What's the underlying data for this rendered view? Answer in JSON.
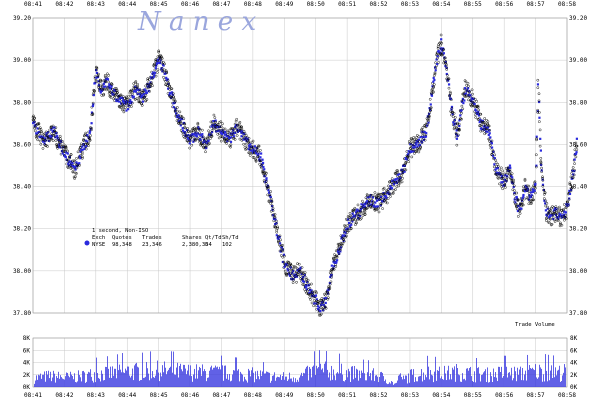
{
  "watermark": "N a n e x",
  "price_axis": {
    "ticks": [
      "39.20",
      "39.00",
      "38.80",
      "38.60",
      "38.40",
      "38.20",
      "38.00",
      "37.80"
    ],
    "values": [
      39.2,
      39.0,
      38.8,
      38.6,
      38.4,
      38.2,
      38.0,
      37.8
    ]
  },
  "volume_axis": {
    "title": "Trade Volume",
    "ticks": [
      "8K",
      "6K",
      "4K",
      "2K",
      "0K"
    ],
    "values": [
      8000,
      6000,
      4000,
      2000,
      0
    ]
  },
  "time_ticks": [
    "08:41",
    "08:42",
    "08:43",
    "08:44",
    "08:45",
    "08:46",
    "08:47",
    "08:48",
    "08:49",
    "08:50",
    "08:51",
    "08:52",
    "08:53",
    "08:54",
    "08:55",
    "08:56",
    "08:57",
    "08:58"
  ],
  "legend": {
    "line1": "1 second, Non-ISO",
    "headers": [
      "Exch",
      "Quotes",
      "Trades",
      "Shares",
      "Qt/Td",
      "Sh/Td"
    ],
    "row": [
      "NYSE",
      "98,348",
      "23,346",
      "2,380,304",
      "5",
      "102"
    ]
  },
  "colors": {
    "trade_marker": "#2a2add",
    "quote_marker": "#000000",
    "volume_bar": "#3a3ae0",
    "grid": "#c8c8c8"
  },
  "chart_data": {
    "type": "scatter",
    "title": "",
    "xlabel": "",
    "ylabel": "",
    "xlim": [
      "08:41",
      "08:58"
    ],
    "ylim": [
      37.8,
      39.2
    ],
    "volume_ylim": [
      0,
      8000
    ],
    "grid": true,
    "series": [
      {
        "name": "NYSE",
        "kind": "price",
        "x": [
          "08:41:00",
          "08:41:20",
          "08:41:40",
          "08:42:00",
          "08:42:20",
          "08:42:35",
          "08:42:50",
          "08:43:00",
          "08:43:10",
          "08:43:20",
          "08:43:40",
          "08:44:00",
          "08:44:15",
          "08:44:30",
          "08:44:45",
          "08:45:00",
          "08:45:10",
          "08:45:20",
          "08:45:40",
          "08:46:00",
          "08:46:15",
          "08:46:30",
          "08:46:45",
          "08:47:00",
          "08:47:15",
          "08:47:30",
          "08:47:45",
          "08:48:00",
          "08:48:15",
          "08:48:30",
          "08:48:45",
          "08:49:00",
          "08:49:15",
          "08:49:30",
          "08:49:45",
          "08:50:00",
          "08:50:10",
          "08:50:20",
          "08:50:30",
          "08:50:45",
          "08:51:00",
          "08:51:15",
          "08:51:30",
          "08:51:45",
          "08:52:00",
          "08:52:15",
          "08:52:30",
          "08:52:45",
          "08:53:00",
          "08:53:15",
          "08:53:30",
          "08:53:40",
          "08:53:50",
          "08:54:00",
          "08:54:10",
          "08:54:20",
          "08:54:30",
          "08:54:45",
          "08:55:00",
          "08:55:15",
          "08:55:30",
          "08:55:45",
          "08:56:00",
          "08:56:10",
          "08:56:20",
          "08:56:30",
          "08:56:40",
          "08:56:50",
          "08:57:00",
          "08:57:05",
          "08:57:10",
          "08:57:20",
          "08:57:30",
          "08:57:40",
          "08:57:50",
          "08:58:00",
          "08:58:10",
          "08:58:20"
        ],
        "y": [
          38.7,
          38.62,
          38.66,
          38.56,
          38.48,
          38.58,
          38.66,
          38.94,
          38.86,
          38.9,
          38.82,
          38.78,
          38.86,
          38.82,
          38.9,
          39.0,
          38.96,
          38.86,
          38.72,
          38.62,
          38.66,
          38.6,
          38.7,
          38.66,
          38.62,
          38.68,
          38.62,
          38.58,
          38.54,
          38.38,
          38.2,
          38.04,
          37.98,
          38.0,
          37.92,
          37.86,
          37.82,
          37.86,
          38.0,
          38.1,
          38.22,
          38.26,
          38.3,
          38.34,
          38.32,
          38.36,
          38.42,
          38.46,
          38.58,
          38.6,
          38.66,
          38.8,
          38.98,
          39.08,
          38.96,
          38.76,
          38.64,
          38.86,
          38.82,
          38.7,
          38.66,
          38.48,
          38.42,
          38.5,
          38.36,
          38.28,
          38.4,
          38.34,
          38.4,
          38.88,
          38.52,
          38.28,
          38.26,
          38.28,
          38.24,
          38.3,
          38.44,
          38.62
        ]
      },
      {
        "name": "Trade Volume",
        "kind": "volume",
        "x": [
          "08:41",
          "08:41:30",
          "08:42",
          "08:42:30",
          "08:43",
          "08:43:30",
          "08:44",
          "08:44:30",
          "08:45",
          "08:45:30",
          "08:46",
          "08:46:30",
          "08:47",
          "08:47:30",
          "08:48",
          "08:48:30",
          "08:49",
          "08:49:30",
          "08:50",
          "08:50:30",
          "08:51",
          "08:51:30",
          "08:52",
          "08:52:30",
          "08:53",
          "08:53:30",
          "08:54",
          "08:54:30",
          "08:55",
          "08:55:30",
          "08:56",
          "08:56:30",
          "08:57",
          "08:57:30",
          "08:58"
        ],
        "y": [
          2000,
          2500,
          2200,
          2400,
          3000,
          3200,
          3600,
          3500,
          3800,
          3600,
          3400,
          3300,
          3200,
          3000,
          2800,
          2400,
          2200,
          2400,
          3800,
          3600,
          3200,
          2800,
          2600,
          700,
          2600,
          3200,
          3000,
          3400,
          3000,
          2800,
          3200,
          3000,
          3600,
          3200,
          3400
        ]
      }
    ]
  }
}
